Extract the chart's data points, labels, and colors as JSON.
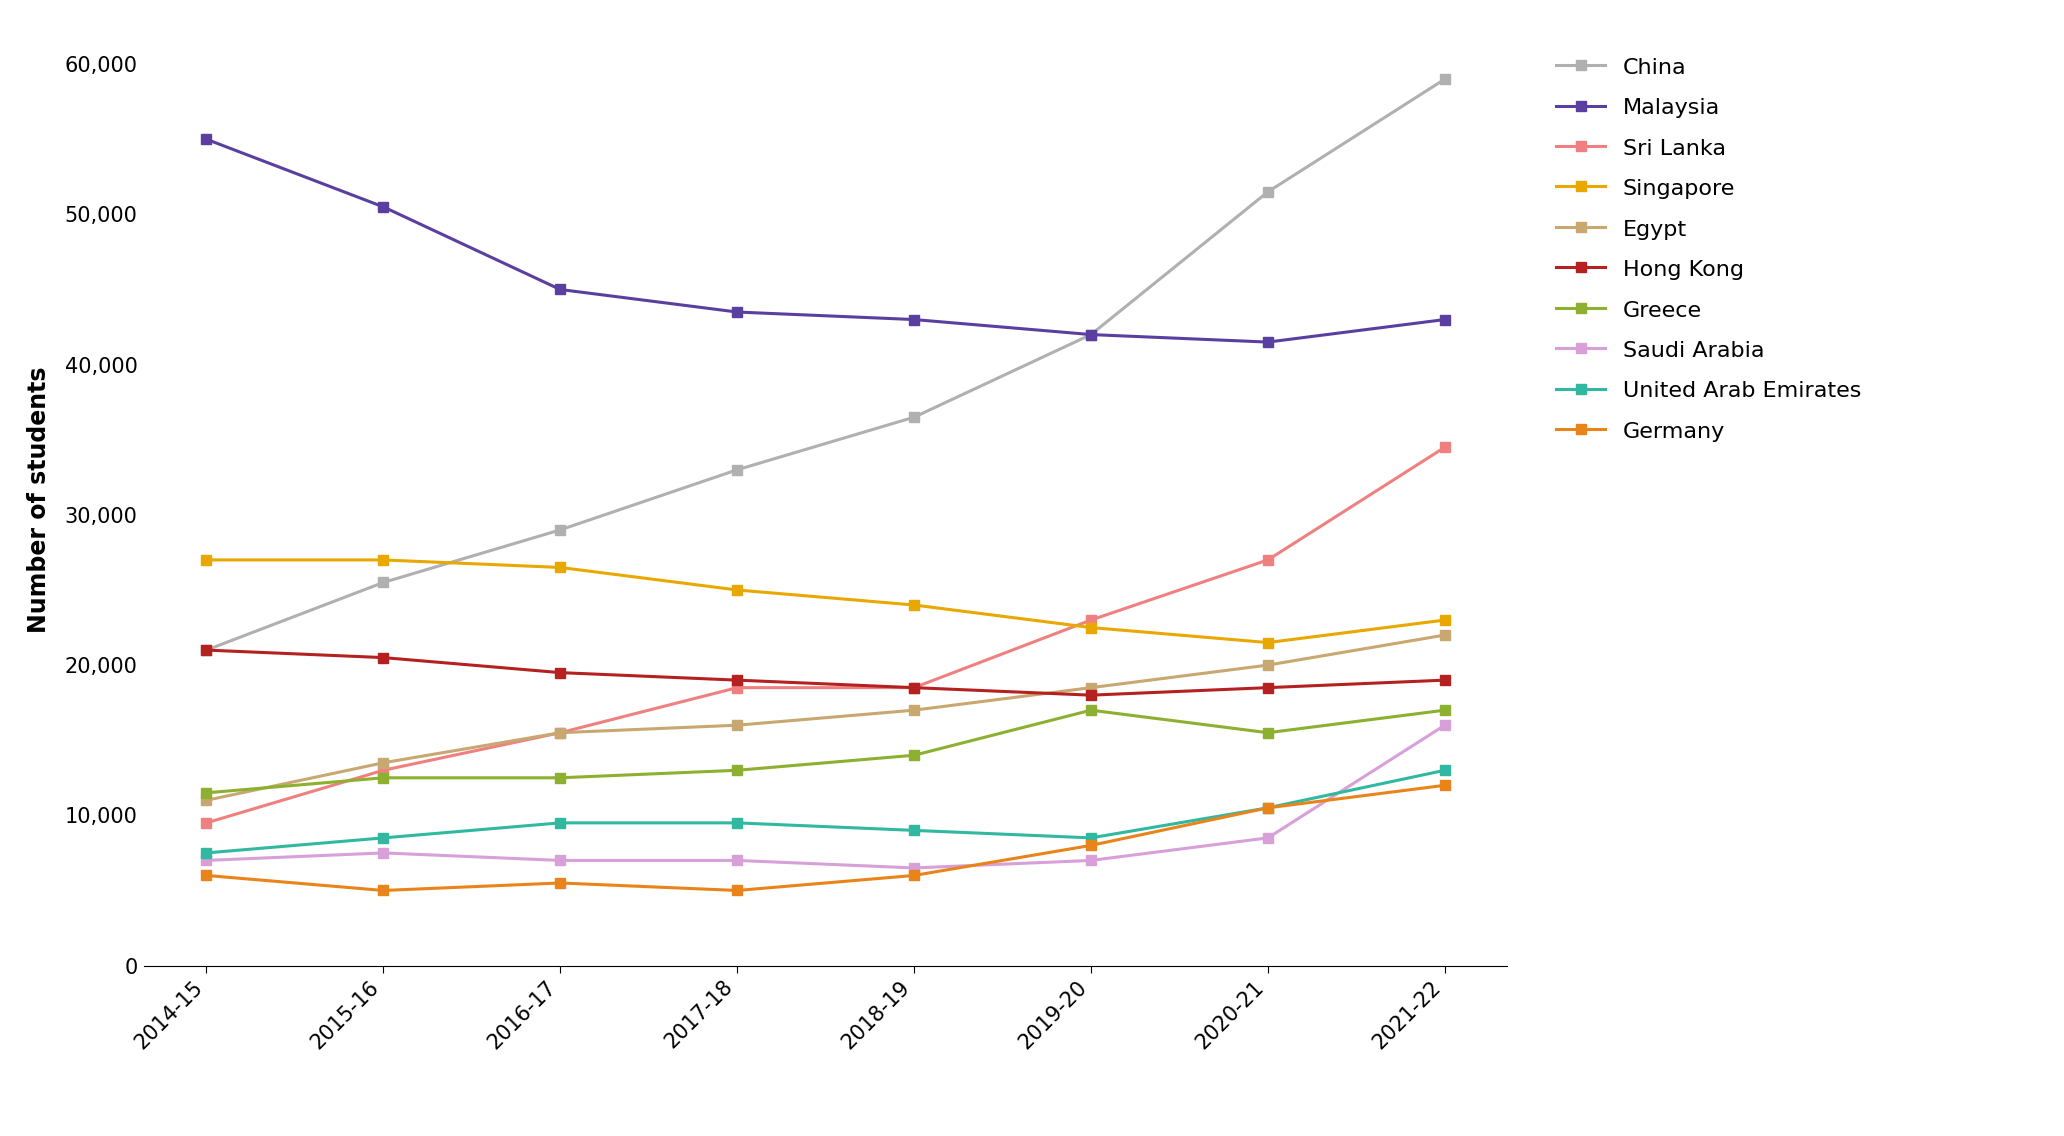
{
  "years": [
    "2014-15",
    "2015-16",
    "2016-17",
    "2017-18",
    "2018-19",
    "2019-20",
    "2020-21",
    "2021-22"
  ],
  "series": {
    "China": {
      "values": [
        21000,
        25500,
        29000,
        33000,
        36500,
        42000,
        51500,
        59000
      ],
      "color": "#b0b0b0",
      "marker": "s"
    },
    "Malaysia": {
      "values": [
        55000,
        50500,
        45000,
        43500,
        43000,
        42000,
        41500,
        43000
      ],
      "color": "#5b3fa0",
      "marker": "s"
    },
    "Sri Lanka": {
      "values": [
        9500,
        13000,
        15500,
        18500,
        18500,
        23000,
        27000,
        34500
      ],
      "color": "#f08080",
      "marker": "s"
    },
    "Singapore": {
      "values": [
        27000,
        27000,
        26500,
        25000,
        24000,
        22500,
        21500,
        23000
      ],
      "color": "#e8a800",
      "marker": "s"
    },
    "Egypt": {
      "values": [
        11000,
        13500,
        15500,
        16000,
        17000,
        18500,
        20000,
        22000
      ],
      "color": "#c8a870",
      "marker": "s"
    },
    "Hong Kong": {
      "values": [
        21000,
        20500,
        19500,
        19000,
        18500,
        18000,
        18500,
        19000
      ],
      "color": "#b52020",
      "marker": "s"
    },
    "Greece": {
      "values": [
        11500,
        12500,
        12500,
        13000,
        14000,
        17000,
        15500,
        17000
      ],
      "color": "#8db030",
      "marker": "s"
    },
    "Saudi Arabia": {
      "values": [
        7000,
        7500,
        7000,
        7000,
        6500,
        7000,
        8500,
        16000
      ],
      "color": "#d8a0d8",
      "marker": "s"
    },
    "United Arab Emirates": {
      "values": [
        7500,
        8500,
        9500,
        9500,
        9000,
        8500,
        10500,
        13000
      ],
      "color": "#30b8a0",
      "marker": "s"
    },
    "Germany": {
      "values": [
        6000,
        5000,
        5500,
        5000,
        6000,
        8000,
        10500,
        12000
      ],
      "color": "#e8841a",
      "marker": "s"
    }
  },
  "ylabel": "Number of students",
  "ylim": [
    0,
    62000
  ],
  "yticks": [
    0,
    10000,
    20000,
    30000,
    40000,
    50000,
    60000
  ],
  "background_color": "#ffffff",
  "legend_fontsize": 16,
  "axis_label_fontsize": 17,
  "tick_fontsize": 15,
  "linewidth": 2.2,
  "markersize": 7
}
